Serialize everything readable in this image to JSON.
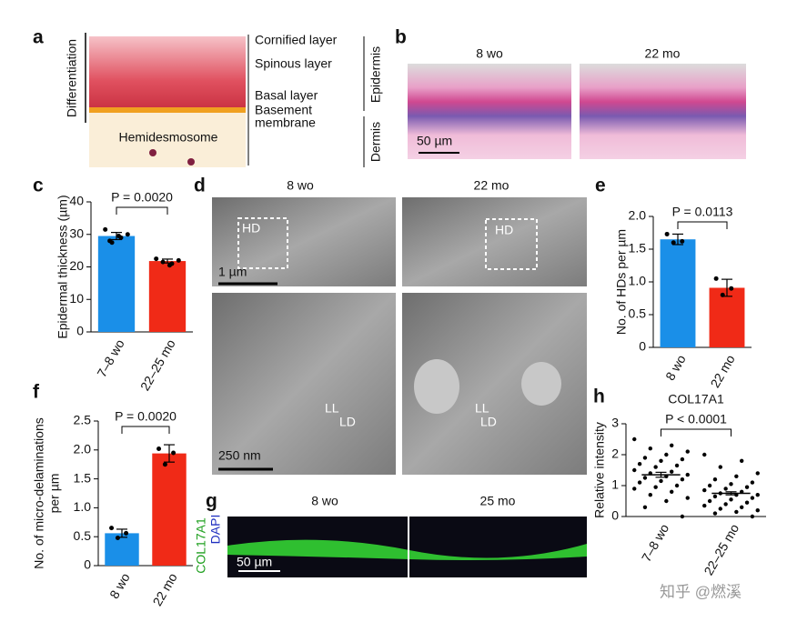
{
  "panel_a": {
    "label": "a",
    "axis": "Differentiation",
    "layers": [
      "Cornified layer",
      "Spinous layer",
      "Basal layer",
      "Basement",
      "membrane"
    ],
    "hemidesmosome": "Hemidesmosome",
    "regions": [
      "Epidermis",
      "Dermis"
    ]
  },
  "panel_b": {
    "label": "b",
    "columns": [
      "8 wo",
      "22 mo"
    ],
    "scale": "50 µm"
  },
  "panel_d": {
    "label": "d",
    "columns": [
      "8 wo",
      "22 mo"
    ],
    "hd": "HD",
    "scale_top": "1 µm",
    "scale_bottom": "250 nm",
    "ll": "LL",
    "ld": "LD"
  },
  "panel_g": {
    "label": "g",
    "columns": [
      "8 wo",
      "25 mo"
    ],
    "stains": [
      "COL17A1",
      "DAPI"
    ],
    "scale": "50 µm"
  },
  "watermark": "知乎 @燃溪",
  "chart_data": [
    {
      "type": "bar",
      "label": "c",
      "ylabel": "Epidermal thickness (µm)",
      "categories": [
        "7–8 wo",
        "22–25 mo"
      ],
      "values": [
        29.5,
        21.8
      ],
      "errors": [
        1.1,
        0.6
      ],
      "points": [
        [
          31.5,
          29,
          27.5,
          30,
          29.5,
          28
        ],
        [
          22.5,
          21,
          21.5,
          22,
          20.5
        ]
      ],
      "colors": [
        "#1a8fe8",
        "#f02a17"
      ],
      "annotation": "P = 0.0020",
      "ylim": [
        0,
        40
      ],
      "yticks": [
        0,
        10,
        20,
        30,
        40
      ]
    },
    {
      "type": "bar",
      "label": "e",
      "ylabel": "No. of HDs per µm",
      "categories": [
        "8 wo",
        "22 mo"
      ],
      "values": [
        1.65,
        0.91
      ],
      "errors": [
        0.08,
        0.13
      ],
      "points": [
        [
          1.73,
          1.62,
          1.6
        ],
        [
          1.05,
          0.9,
          0.8
        ]
      ],
      "colors": [
        "#1a8fe8",
        "#f02a17"
      ],
      "annotation": "P = 0.0113",
      "ylim": [
        0,
        2
      ],
      "yticks": [
        0,
        0.5,
        {
          "value": 1,
          "label": "1.0"
        },
        1.5,
        {
          "value": 2,
          "label": "2.0"
        }
      ]
    },
    {
      "type": "bar",
      "label": "f",
      "ylabel": [
        "No. of micro-delaminations",
        "per µm"
      ],
      "categories": [
        "8 wo",
        "22 mo"
      ],
      "values": [
        0.56,
        1.94
      ],
      "errors": [
        0.07,
        0.15
      ],
      "points": [
        [
          0.65,
          0.56,
          0.48
        ],
        [
          2.02,
          1.95,
          1.75
        ]
      ],
      "colors": [
        "#1a8fe8",
        "#f02a17"
      ],
      "annotation": "P = 0.0020",
      "ylim": [
        0,
        2.5
      ],
      "yticks": [
        0,
        0.5,
        {
          "value": 1,
          "label": "1.0"
        },
        1.5,
        {
          "value": 2,
          "label": "2.0"
        },
        2.5
      ]
    },
    {
      "type": "dotplot",
      "label": "h",
      "title": "COL17A1",
      "ylabel": "Relative intensity",
      "categories": [
        "7–8 wo",
        "22–25 mo"
      ],
      "values": [
        1.35,
        0.75
      ],
      "errors": [
        0.08,
        0.05
      ],
      "points": [
        [
          2.5,
          2.3,
          2.2,
          2.1,
          2,
          1.9,
          1.85,
          1.8,
          1.7,
          1.65,
          1.6,
          1.5,
          1.45,
          1.4,
          1.35,
          1.3,
          1.25,
          1.2,
          1.15,
          1.1,
          1,
          0.95,
          0.9,
          0.8,
          0.7,
          0.6,
          0.5,
          0.3,
          0
        ],
        [
          2,
          1.8,
          1.6,
          1.4,
          1.3,
          1.2,
          1.1,
          1.05,
          1,
          0.95,
          0.9,
          0.85,
          0.8,
          0.75,
          0.7,
          0.7,
          0.65,
          0.6,
          0.55,
          0.5,
          0.45,
          0.4,
          0.35,
          0.3,
          0.25,
          0.2,
          0.15,
          0.1,
          0
        ]
      ],
      "colors": [
        "#000000",
        "#000000"
      ],
      "annotation": "P < 0.0001",
      "ylim": [
        0,
        3
      ],
      "yticks": [
        0,
        1,
        2,
        3
      ]
    }
  ]
}
